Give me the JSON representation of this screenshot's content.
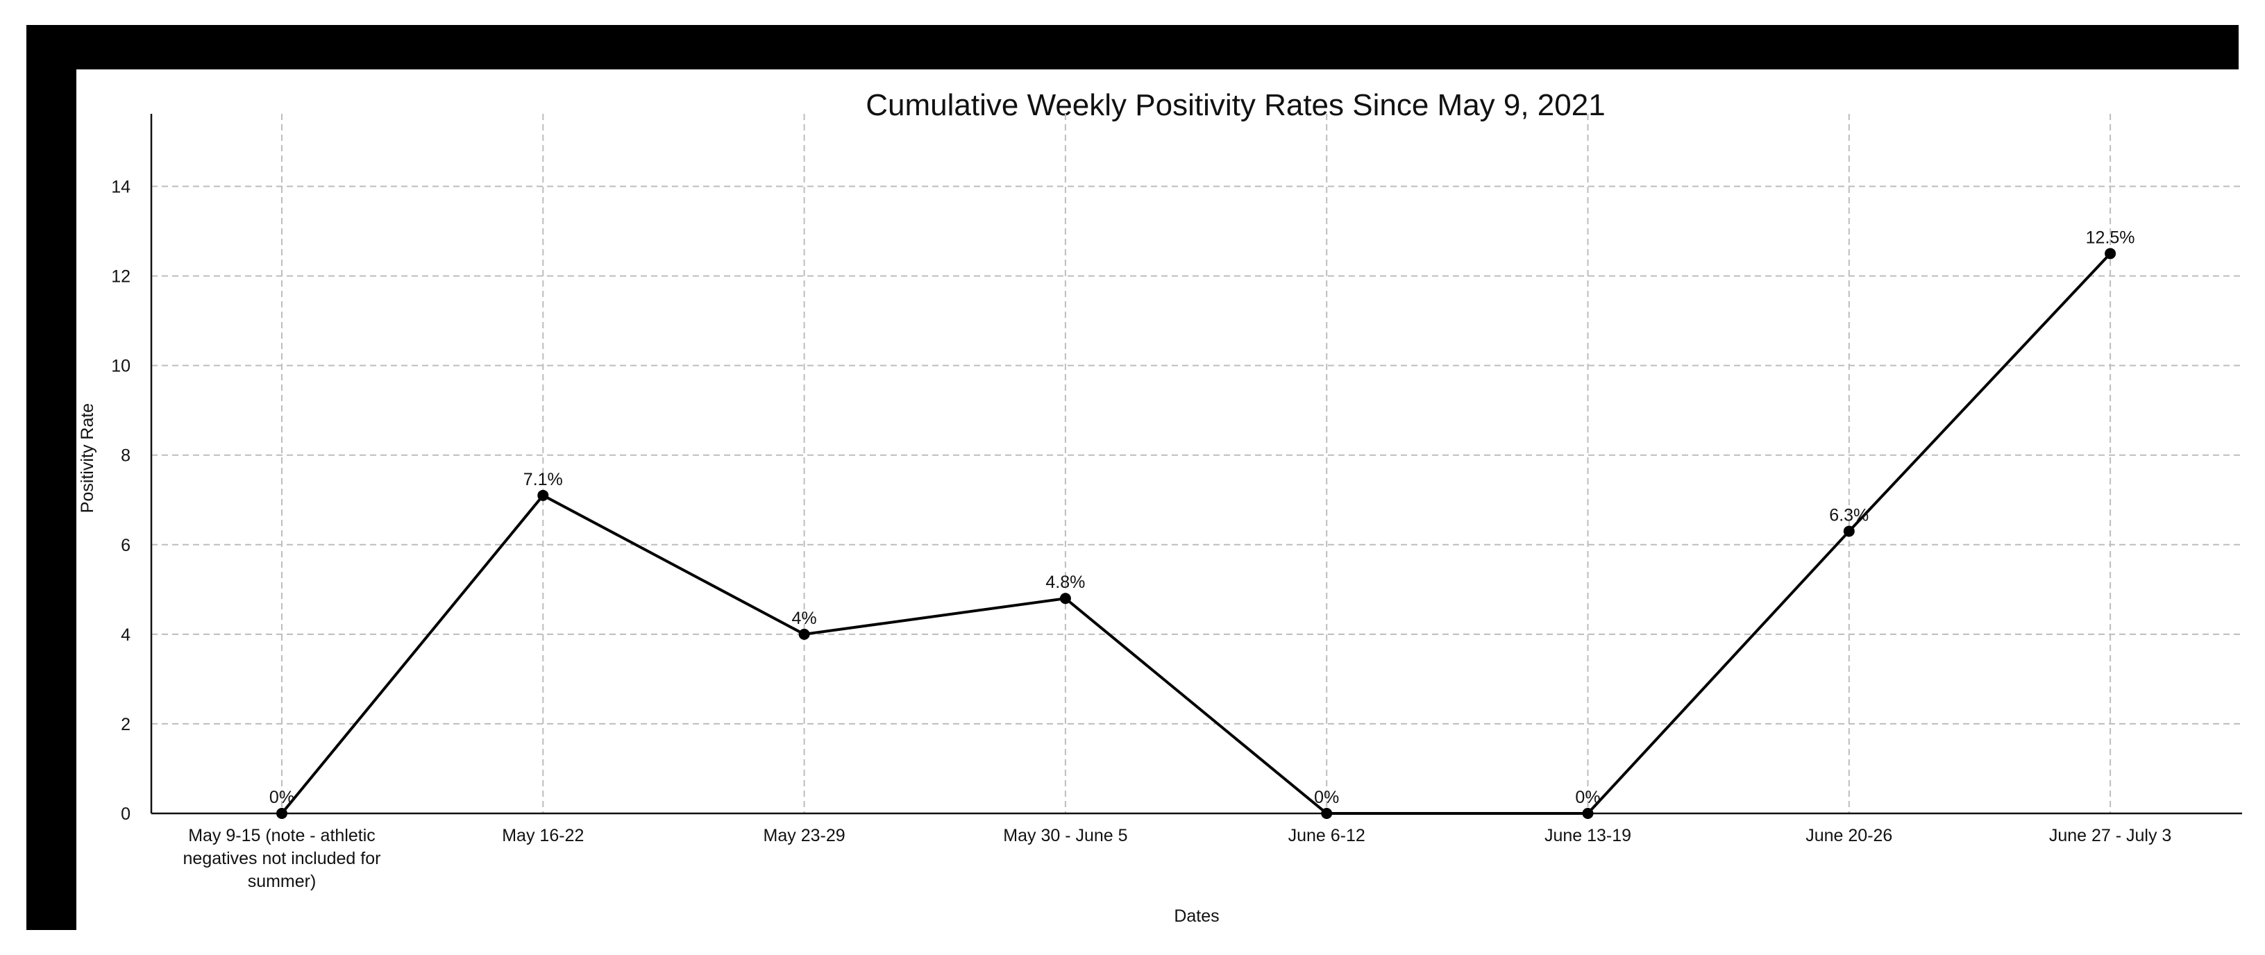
{
  "chart_data": {
    "type": "line",
    "title": "Cumulative Weekly Positivity Rates Since May 9, 2021",
    "xlabel": "Dates",
    "ylabel": "Positivity Rate",
    "ylim": [
      0,
      15
    ],
    "yticks": [
      0,
      2,
      4,
      6,
      8,
      10,
      12,
      14
    ],
    "grid": true,
    "categories": [
      [
        "May 9-15 (note - athletic",
        "negatives not included for",
        "summer)"
      ],
      [
        "May 16-22"
      ],
      [
        "May 23-29"
      ],
      [
        "May 30 - June 5"
      ],
      [
        "June 6-12"
      ],
      [
        "June 13-19"
      ],
      [
        "June 20-26"
      ],
      [
        "June 27 - July 3"
      ]
    ],
    "series": [
      {
        "values": [
          0,
          7.1,
          4,
          4.8,
          0,
          0,
          6.3,
          12.5
        ],
        "data_labels": [
          "0%",
          "7.1%",
          "4%",
          "4.8%",
          "0%",
          "0%",
          "6.3%",
          "12.5%"
        ]
      }
    ],
    "colors": {
      "line": "#000000",
      "frame": "#000000",
      "grid": "#bdbdbd"
    }
  }
}
